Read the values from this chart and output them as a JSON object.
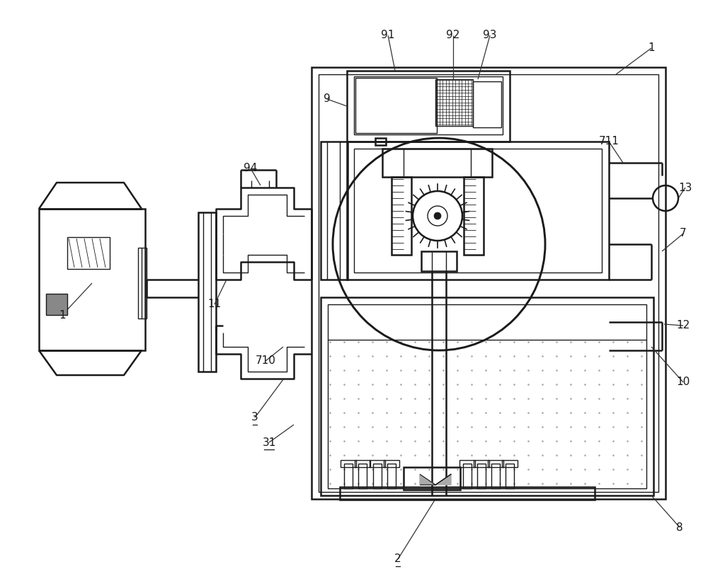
{
  "bg_color": "#ffffff",
  "lc": "#1a1a1a",
  "lw": 1.8,
  "tlw": 1.0,
  "fig_w": 10.0,
  "fig_h": 8.18,
  "dpi": 100
}
